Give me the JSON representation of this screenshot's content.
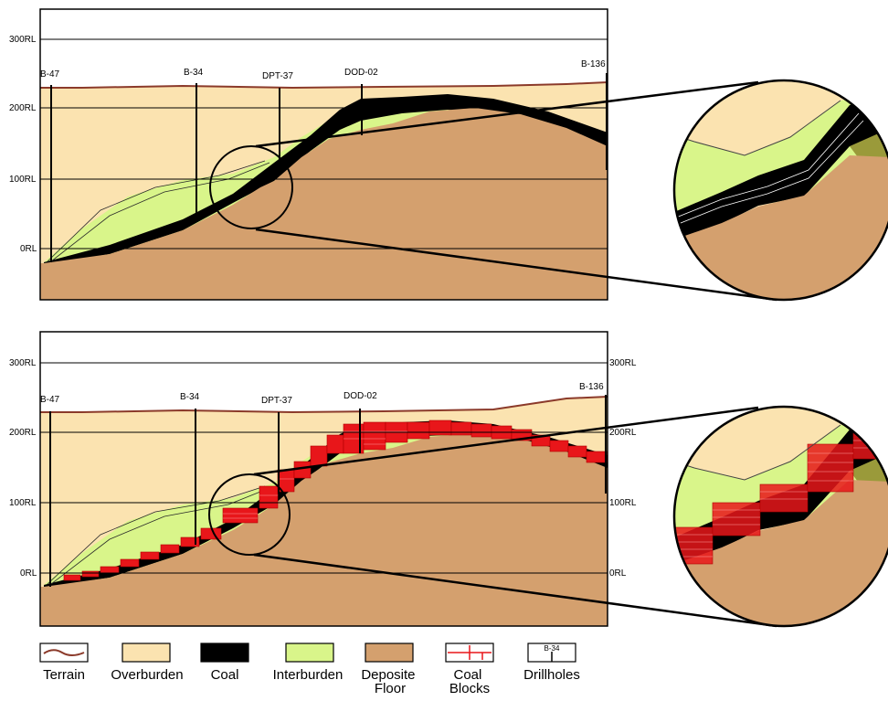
{
  "sections": [
    {
      "id": "top",
      "rl_labels_left": [
        "300RL",
        "200RL",
        "100RL",
        "0RL"
      ],
      "rl_labels_right": [],
      "drillholes": [
        "B-47",
        "B-34",
        "DPT-37",
        "DOD-02",
        "B-136"
      ],
      "shows_coal_blocks": false
    },
    {
      "id": "bottom",
      "rl_labels_left": [
        "300RL",
        "200RL",
        "100RL",
        "0RL"
      ],
      "rl_labels_right": [
        "300RL",
        "200RL",
        "100RL",
        "0RL"
      ],
      "drillholes": [
        "B-47",
        "B-34",
        "DPT-37",
        "DOD-02",
        "B-136"
      ],
      "shows_coal_blocks": true
    }
  ],
  "legend": [
    {
      "key": "terrain",
      "label": "Terrain"
    },
    {
      "key": "overburden",
      "label": "Overburden"
    },
    {
      "key": "coal",
      "label": "Coal"
    },
    {
      "key": "interburden",
      "label": "Interburden"
    },
    {
      "key": "floor",
      "label": "Deposite Floor"
    },
    {
      "key": "blocks",
      "label": "Coal Blocks"
    },
    {
      "key": "drillholes",
      "label": "Drillholes",
      "swatch_text": "B-34"
    }
  ],
  "colors": {
    "overburden": "#fbe3b0",
    "coal": "#000000",
    "interburden": "#d9f58a",
    "floor": "#d4a06e",
    "terrain": "#8b3a2a",
    "coal_blocks": "#e8161a",
    "olive": "#9a9a3a"
  }
}
